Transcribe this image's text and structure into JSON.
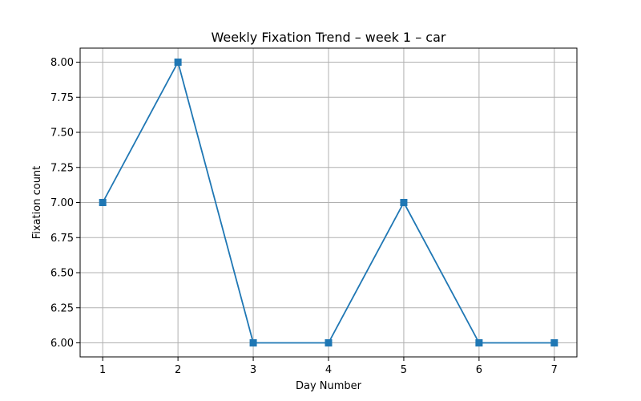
{
  "chart_data": {
    "type": "line",
    "title": "Weekly Fixation Trend – week 1 – car",
    "xlabel": "Day Number",
    "ylabel": "Fixation count",
    "x": [
      1,
      2,
      3,
      4,
      5,
      6,
      7
    ],
    "xticks": [
      "1",
      "2",
      "3",
      "4",
      "5",
      "6",
      "7"
    ],
    "yticks": [
      "6.00",
      "6.25",
      "6.50",
      "6.75",
      "7.00",
      "7.25",
      "7.50",
      "7.75",
      "8.00"
    ],
    "xlim": [
      0.7,
      7.3
    ],
    "ylim": [
      5.9,
      8.1
    ],
    "grid": true,
    "marker": "square",
    "series": [
      {
        "values": [
          7,
          8,
          6,
          6,
          7,
          6,
          6
        ],
        "color": "#1f77b4"
      }
    ]
  }
}
